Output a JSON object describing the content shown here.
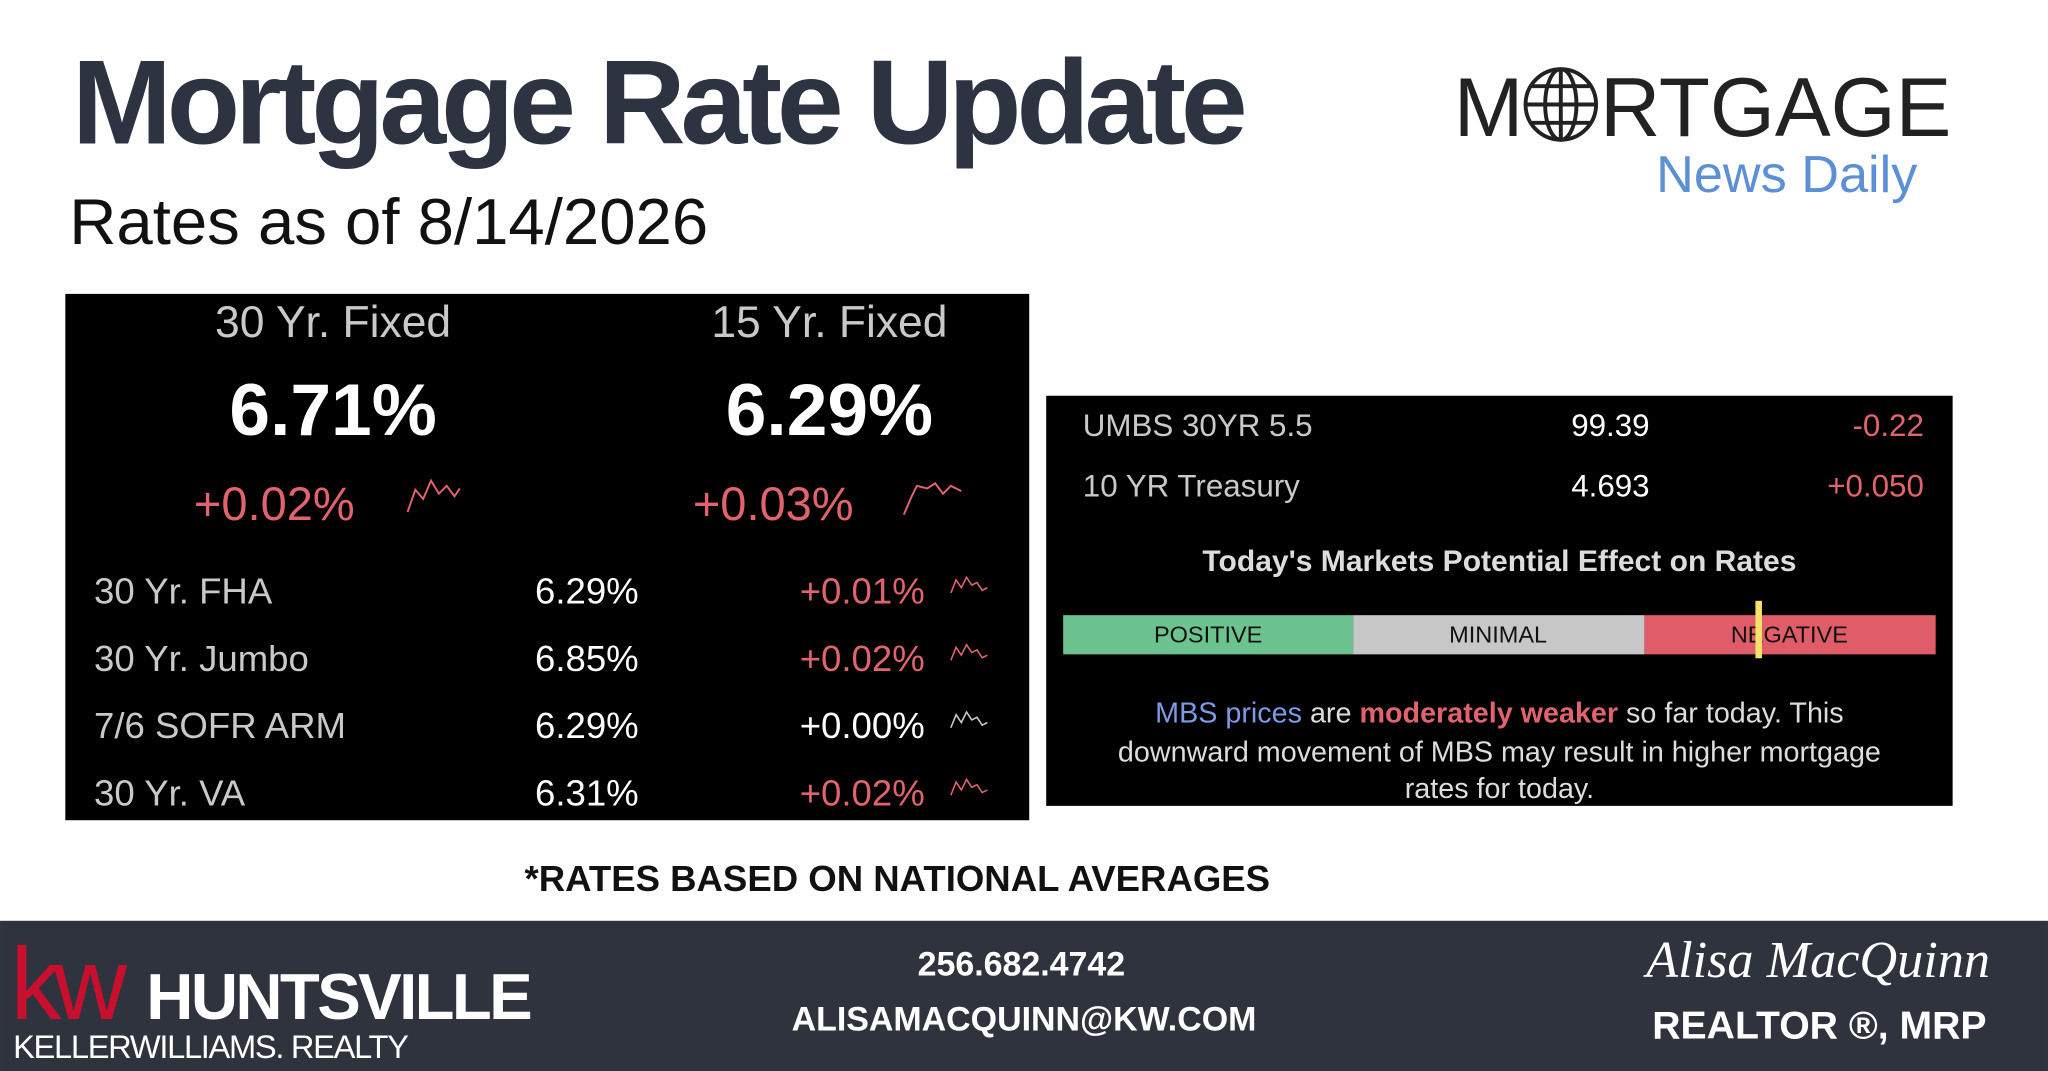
{
  "header": {
    "title": "Mortgage Rate Update",
    "subtitle": "Rates as of 8/14/2026"
  },
  "logo": {
    "left": "M",
    "right": "RTGAGE",
    "tagline": "News Daily"
  },
  "primary": [
    {
      "name": "30 Yr. Fixed",
      "rate": "6.71%",
      "change": "+0.02%"
    },
    {
      "name": "15 Yr. Fixed",
      "rate": "6.29%",
      "change": "+0.03%"
    }
  ],
  "products": [
    [
      "30 Yr. FHA",
      "6.29%",
      "+0.01%"
    ],
    [
      "30 Yr. Jumbo",
      "6.85%",
      "+0.02%"
    ],
    [
      "7/6 SOFR ARM",
      "6.29%",
      "+0.00%"
    ],
    [
      "30 Yr. VA",
      "6.31%",
      "+0.02%"
    ]
  ],
  "market": {
    "rows": [
      [
        "UMBS 30YR 5.5",
        "99.39",
        "-0.22"
      ],
      [
        "10 YR Treasury",
        "4.693",
        "+0.050"
      ]
    ],
    "effect_title": "Today's Markets Potential Effect on Rates",
    "scale": [
      "POSITIVE",
      "MINIMAL",
      "NEGATIVE"
    ],
    "message": {
      "subject": "MBS prices",
      "verb": "are",
      "assessment": "moderately weaker",
      "rest": "so far today. This",
      "line2": "downward movement of MBS may result in higher mortgage",
      "line3": "rates for today."
    }
  },
  "note": "*RATES BASED ON NATIONAL AVERAGES",
  "footer": {
    "brand_mark": "kw",
    "brand_city": "HUNTSVILLE",
    "brand_company": "KELLERWILLIAMS. REALTY",
    "phone": "256.682.4742",
    "email": "ALISAMACQUINN@KW.COM",
    "signature": "Alisa MacQuinn",
    "role": "REALTOR ®, MRP"
  }
}
